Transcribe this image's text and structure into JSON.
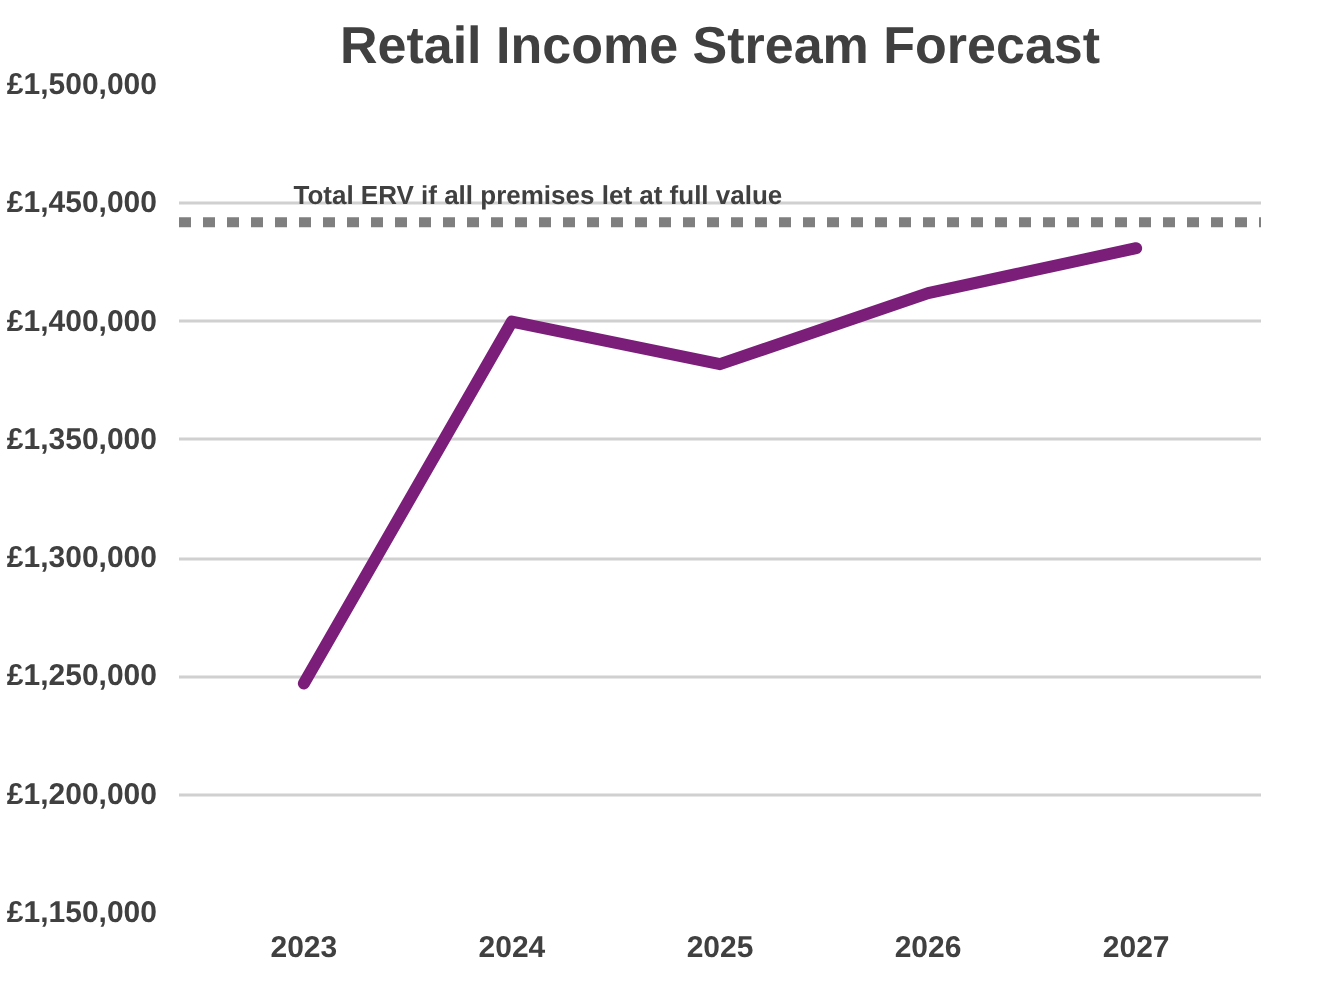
{
  "chart_data": {
    "type": "line",
    "title": "Retail Income Stream Forecast",
    "categories": [
      "2023",
      "2024",
      "2025",
      "2026",
      "2027"
    ],
    "series": [
      {
        "color": "#7b1e7a",
        "values": [
          1247000,
          1400000,
          1382000,
          1412000,
          1431000
        ]
      }
    ],
    "ylim": [
      1150000,
      1500000
    ],
    "yticks": [
      {
        "value": 1150000,
        "label": "£1,150,000"
      },
      {
        "value": 1200000,
        "label": "£1,200,000"
      },
      {
        "value": 1250000,
        "label": "£1,250,000"
      },
      {
        "value": 1300000,
        "label": "£1,300,000"
      },
      {
        "value": 1350000,
        "label": "£1,350,000"
      },
      {
        "value": 1400000,
        "label": "£1,400,000"
      },
      {
        "value": 1450000,
        "label": "£1,450,000"
      },
      {
        "value": 1500000,
        "label": "£1,500,000"
      }
    ],
    "grid": "y",
    "marker": "none",
    "line_style": "solid",
    "ref_lines": [
      {
        "axis": "y",
        "value": 1442000,
        "label": "Total ERV if all premises let at full value",
        "color": "#7f7f7f",
        "line_style": "dashed"
      }
    ]
  }
}
